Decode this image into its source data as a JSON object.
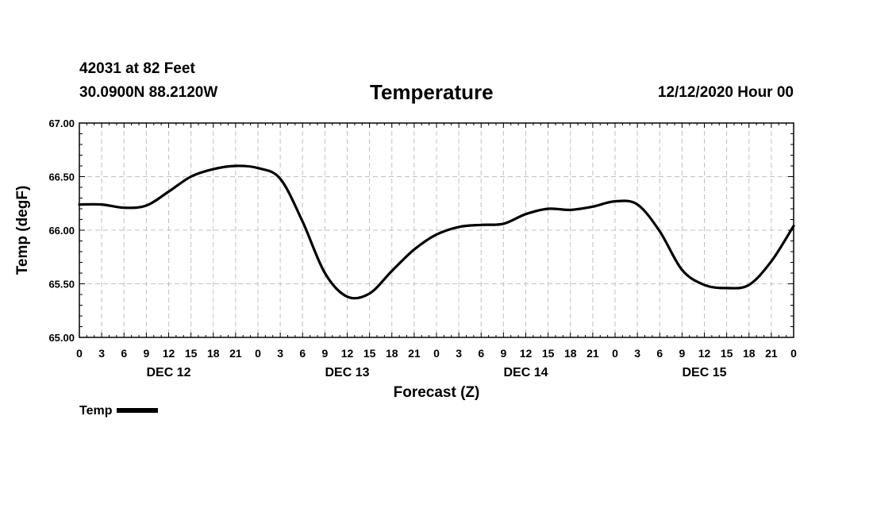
{
  "header": {
    "station": "42031 at 82 Feet",
    "coords": "30.0900N 88.2120W",
    "run_time": "12/12/2020 Hour 00"
  },
  "legend": {
    "label": "Temp",
    "color": "#000000"
  },
  "colors": {
    "line": "#000000",
    "grid": "#c0c0c0",
    "frame": "#000000"
  },
  "chart_data": {
    "type": "line",
    "title": "Temperature",
    "xlabel": "Forecast (Z)",
    "ylabel": "Temp (degF)",
    "xlim": [
      0,
      96
    ],
    "ylim": [
      65.0,
      67.0
    ],
    "grid": true,
    "legend_position": "bottom-left",
    "x_tick_labels": [
      "0",
      "3",
      "6",
      "9",
      "12",
      "15",
      "18",
      "21",
      "0",
      "3",
      "6",
      "9",
      "12",
      "15",
      "18",
      "21",
      "0",
      "3",
      "6",
      "9",
      "12",
      "15",
      "18",
      "21",
      "0",
      "3",
      "6",
      "9",
      "12",
      "15",
      "18",
      "21",
      "0"
    ],
    "y_tick_labels": [
      "65.00",
      "65.50",
      "66.00",
      "66.50",
      "67.00"
    ],
    "y_ticks": [
      65.0,
      65.5,
      66.0,
      66.5,
      67.0
    ],
    "day_labels": [
      {
        "label": "DEC 12",
        "hour": 12
      },
      {
        "label": "DEC 13",
        "hour": 36
      },
      {
        "label": "DEC 14",
        "hour": 60
      },
      {
        "label": "DEC 15",
        "hour": 84
      }
    ],
    "series": [
      {
        "name": "Temp",
        "x": [
          0,
          3,
          6,
          9,
          12,
          15,
          18,
          21,
          24,
          27,
          30,
          33,
          36,
          39,
          42,
          45,
          48,
          51,
          54,
          57,
          60,
          63,
          66,
          69,
          72,
          75,
          78,
          81,
          84,
          87,
          90,
          93,
          96
        ],
        "values": [
          66.24,
          66.24,
          66.21,
          66.23,
          66.36,
          66.5,
          66.57,
          66.6,
          66.58,
          66.48,
          66.08,
          65.6,
          65.38,
          65.41,
          65.62,
          65.82,
          65.96,
          66.03,
          66.05,
          66.06,
          66.15,
          66.2,
          66.19,
          66.22,
          66.27,
          66.24,
          65.99,
          65.63,
          65.49,
          65.46,
          65.49,
          65.71,
          66.04
        ]
      }
    ]
  }
}
